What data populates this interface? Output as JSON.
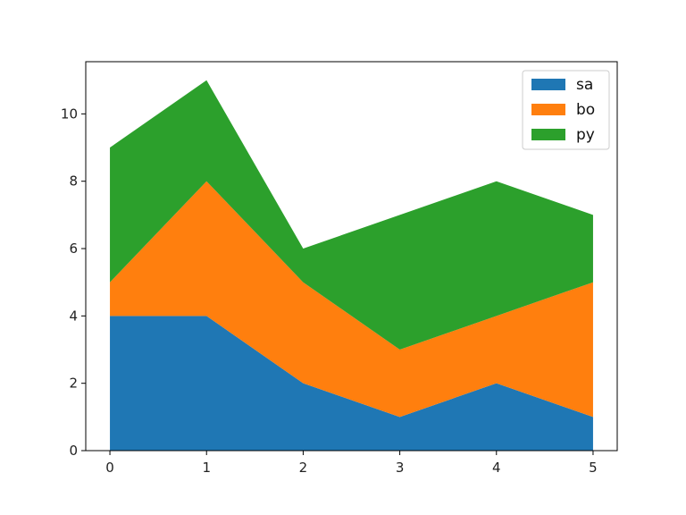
{
  "chart_data": {
    "type": "area",
    "stacked": true,
    "x": [
      0,
      1,
      2,
      3,
      4,
      5
    ],
    "series": [
      {
        "name": "sa",
        "values": [
          4,
          4,
          2,
          1,
          2,
          1
        ],
        "color": "#1f77b4"
      },
      {
        "name": "bo",
        "values": [
          1,
          4,
          3,
          2,
          2,
          4
        ],
        "color": "#ff7f0e"
      },
      {
        "name": "py",
        "values": [
          4,
          3,
          1,
          4,
          4,
          2
        ],
        "color": "#2ca02c"
      }
    ],
    "xticks": [
      "0",
      "1",
      "2",
      "3",
      "4",
      "5"
    ],
    "yticks": [
      "0",
      "2",
      "4",
      "6",
      "8",
      "10"
    ],
    "xlim": [
      -0.25,
      5.25
    ],
    "ylim": [
      0,
      11.55
    ],
    "grid": false,
    "legend_position": "top-right"
  }
}
